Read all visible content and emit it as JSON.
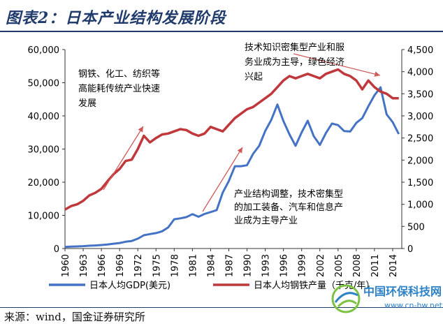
{
  "header": {
    "title": "图表2：日本产业结构发展阶段"
  },
  "footer": {
    "source": "来源：wind，国金证券研究所"
  },
  "watermark": {
    "title": "中国环保科技网",
    "url": "www.cn-hw.net",
    "icon": "globe-leaf-logo"
  },
  "chart_data": {
    "type": "line",
    "x": [
      1960,
      1961,
      1962,
      1963,
      1964,
      1965,
      1966,
      1967,
      1968,
      1969,
      1970,
      1971,
      1972,
      1973,
      1974,
      1975,
      1976,
      1977,
      1978,
      1979,
      1980,
      1981,
      1982,
      1983,
      1984,
      1985,
      1986,
      1987,
      1988,
      1989,
      1990,
      1991,
      1992,
      1993,
      1994,
      1995,
      1996,
      1997,
      1998,
      1999,
      2000,
      2001,
      2002,
      2003,
      2004,
      2005,
      2006,
      2007,
      2008,
      2009,
      2010,
      2011,
      2012,
      2013,
      2014,
      2015
    ],
    "x_ticks": [
      "1960",
      "1963",
      "1966",
      "1969",
      "1972",
      "1975",
      "1978",
      "1981",
      "1984",
      "1987",
      "1990",
      "1993",
      "1996",
      "1999",
      "2002",
      "2005",
      "2008",
      "2011",
      "2014"
    ],
    "y_left_ticks": [
      "0",
      "10,000",
      "20,000",
      "30,000",
      "40,000",
      "50,000",
      "60,000"
    ],
    "y_right_ticks": [
      "0",
      "500",
      "1,000",
      "1,500",
      "2,000",
      "2,500",
      "3,000",
      "3,500",
      "4,000",
      "4,500"
    ],
    "ylim_left": [
      0,
      60000
    ],
    "ylim_right": [
      0,
      4500
    ],
    "series": [
      {
        "name": "日本人均GDP(美元)",
        "axis": "left",
        "color": "#4472c4",
        "values": [
          479,
          563,
          633,
          717,
          836,
          919,
          1058,
          1229,
          1451,
          1669,
          2037,
          2272,
          2967,
          3998,
          4354,
          4659,
          5197,
          6335,
          8821,
          9105,
          9465,
          10361,
          9578,
          10425,
          10984,
          11584,
          16882,
          20355,
          24813,
          24813,
          25124,
          28541,
          30957,
          35452,
          38815,
          43440,
          38437,
          34428,
          30970,
          35004,
          38532,
          33846,
          31236,
          34808,
          37689,
          37218,
          35434,
          35275,
          37866,
          39323,
          42909,
          46204,
          48603,
          40454,
          38109,
          34524
        ]
      },
      {
        "name": "日本人均钢铁产量（千克/年）",
        "axis": "right",
        "color": "#c0383b",
        "values": [
          880,
          960,
          1000,
          1080,
          1200,
          1260,
          1350,
          1520,
          1680,
          1800,
          1980,
          2010,
          2250,
          2550,
          2400,
          2500,
          2580,
          2600,
          2650,
          2700,
          2680,
          2600,
          2550,
          2600,
          2750,
          2700,
          2650,
          2800,
          2950,
          3050,
          3150,
          3200,
          3300,
          3400,
          3500,
          3650,
          3800,
          3900,
          3850,
          3900,
          3950,
          3900,
          3850,
          3950,
          4000,
          4050,
          3950,
          3900,
          3800,
          3600,
          3800,
          3650,
          3550,
          3500,
          3400,
          3400
        ]
      }
    ],
    "annotations": [
      {
        "id": "heavy-industry",
        "lines": [
          "钢铁、化工、纺织等",
          "高能耗传统产业快速",
          "发展"
        ]
      },
      {
        "id": "tech-services",
        "lines": [
          "技术知识密集型产业和服",
          "务业成为主导，绿色经济",
          "兴起"
        ]
      },
      {
        "id": "restructure",
        "lines": [
          "产业结构调整，技术密集型",
          "的加工装备、汽车和信息产",
          "业成为主导产业"
        ]
      }
    ],
    "legend_position": "bottom",
    "grid": false
  }
}
